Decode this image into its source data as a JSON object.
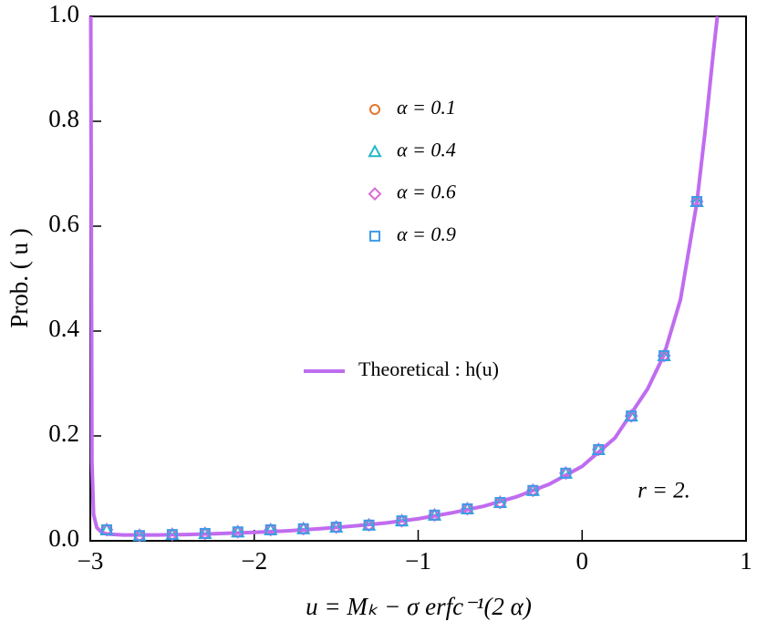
{
  "chart_data": {
    "type": "scatter",
    "xlabel": "u = Mₖ − σ erfc⁻¹(2 α)",
    "ylabel": "Prob. ( u )",
    "annotation": "r = 2.",
    "xlim": [
      -3,
      1
    ],
    "ylim": [
      0,
      1
    ],
    "xticks": [
      {
        "value": -3,
        "label": "−3"
      },
      {
        "value": -2,
        "label": "−2"
      },
      {
        "value": -1,
        "label": "−1"
      },
      0,
      1
    ],
    "yticks": [
      {
        "value": 0,
        "label": "0.0"
      },
      0.2,
      0.4,
      0.6,
      0.8,
      {
        "value": 1,
        "label": "1.0"
      }
    ],
    "x": [
      -2.9,
      -2.7,
      -2.5,
      -2.3,
      -2.1,
      -1.9,
      -1.7,
      -1.5,
      -1.3,
      -1.1,
      -0.9,
      -0.7,
      -0.5,
      -0.3,
      -0.1,
      0.1,
      0.3,
      0.5,
      0.7
    ],
    "series": [
      {
        "name": "α = 0.1",
        "color": "#e8742a",
        "marker": "circle",
        "values": [
          0.021,
          0.01,
          0.012,
          0.014,
          0.017,
          0.021,
          0.023,
          0.026,
          0.03,
          0.038,
          0.049,
          0.061,
          0.073,
          0.096,
          0.129,
          0.174,
          0.238,
          0.353,
          0.647
        ]
      },
      {
        "name": "α = 0.4",
        "color": "#1fb8c8",
        "marker": "triangle",
        "values": [
          0.021,
          0.01,
          0.012,
          0.014,
          0.017,
          0.021,
          0.023,
          0.026,
          0.03,
          0.038,
          0.049,
          0.061,
          0.073,
          0.096,
          0.129,
          0.174,
          0.238,
          0.353,
          0.647
        ]
      },
      {
        "name": "α = 0.6",
        "color": "#d86bd8",
        "marker": "diamond",
        "values": [
          0.021,
          0.01,
          0.012,
          0.014,
          0.017,
          0.021,
          0.023,
          0.026,
          0.03,
          0.038,
          0.049,
          0.061,
          0.073,
          0.096,
          0.129,
          0.174,
          0.238,
          0.353,
          0.647
        ]
      },
      {
        "name": "α = 0.9",
        "color": "#3d9be9",
        "marker": "square",
        "values": [
          0.021,
          0.01,
          0.012,
          0.014,
          0.017,
          0.021,
          0.023,
          0.026,
          0.03,
          0.038,
          0.049,
          0.061,
          0.073,
          0.096,
          0.129,
          0.174,
          0.238,
          0.353,
          0.647
        ]
      }
    ],
    "curve": {
      "name": "Theoretical : h(u)",
      "color": "#c06cf0",
      "x": [
        -2.997,
        -2.99,
        -2.98,
        -2.96,
        -2.93,
        -2.9,
        -2.8,
        -2.6,
        -2.4,
        -2.2,
        -2.0,
        -1.8,
        -1.6,
        -1.4,
        -1.2,
        -1.0,
        -0.8,
        -0.6,
        -0.4,
        -0.2,
        0.0,
        0.2,
        0.4,
        0.5,
        0.6,
        0.7,
        0.75,
        0.8,
        0.825
      ],
      "values": [
        1.0,
        0.15,
        0.05,
        0.025,
        0.016,
        0.013,
        0.011,
        0.011,
        0.012,
        0.014,
        0.016,
        0.019,
        0.023,
        0.028,
        0.034,
        0.042,
        0.053,
        0.066,
        0.084,
        0.108,
        0.142,
        0.196,
        0.29,
        0.355,
        0.46,
        0.645,
        0.78,
        0.93,
        1.0
      ]
    }
  }
}
